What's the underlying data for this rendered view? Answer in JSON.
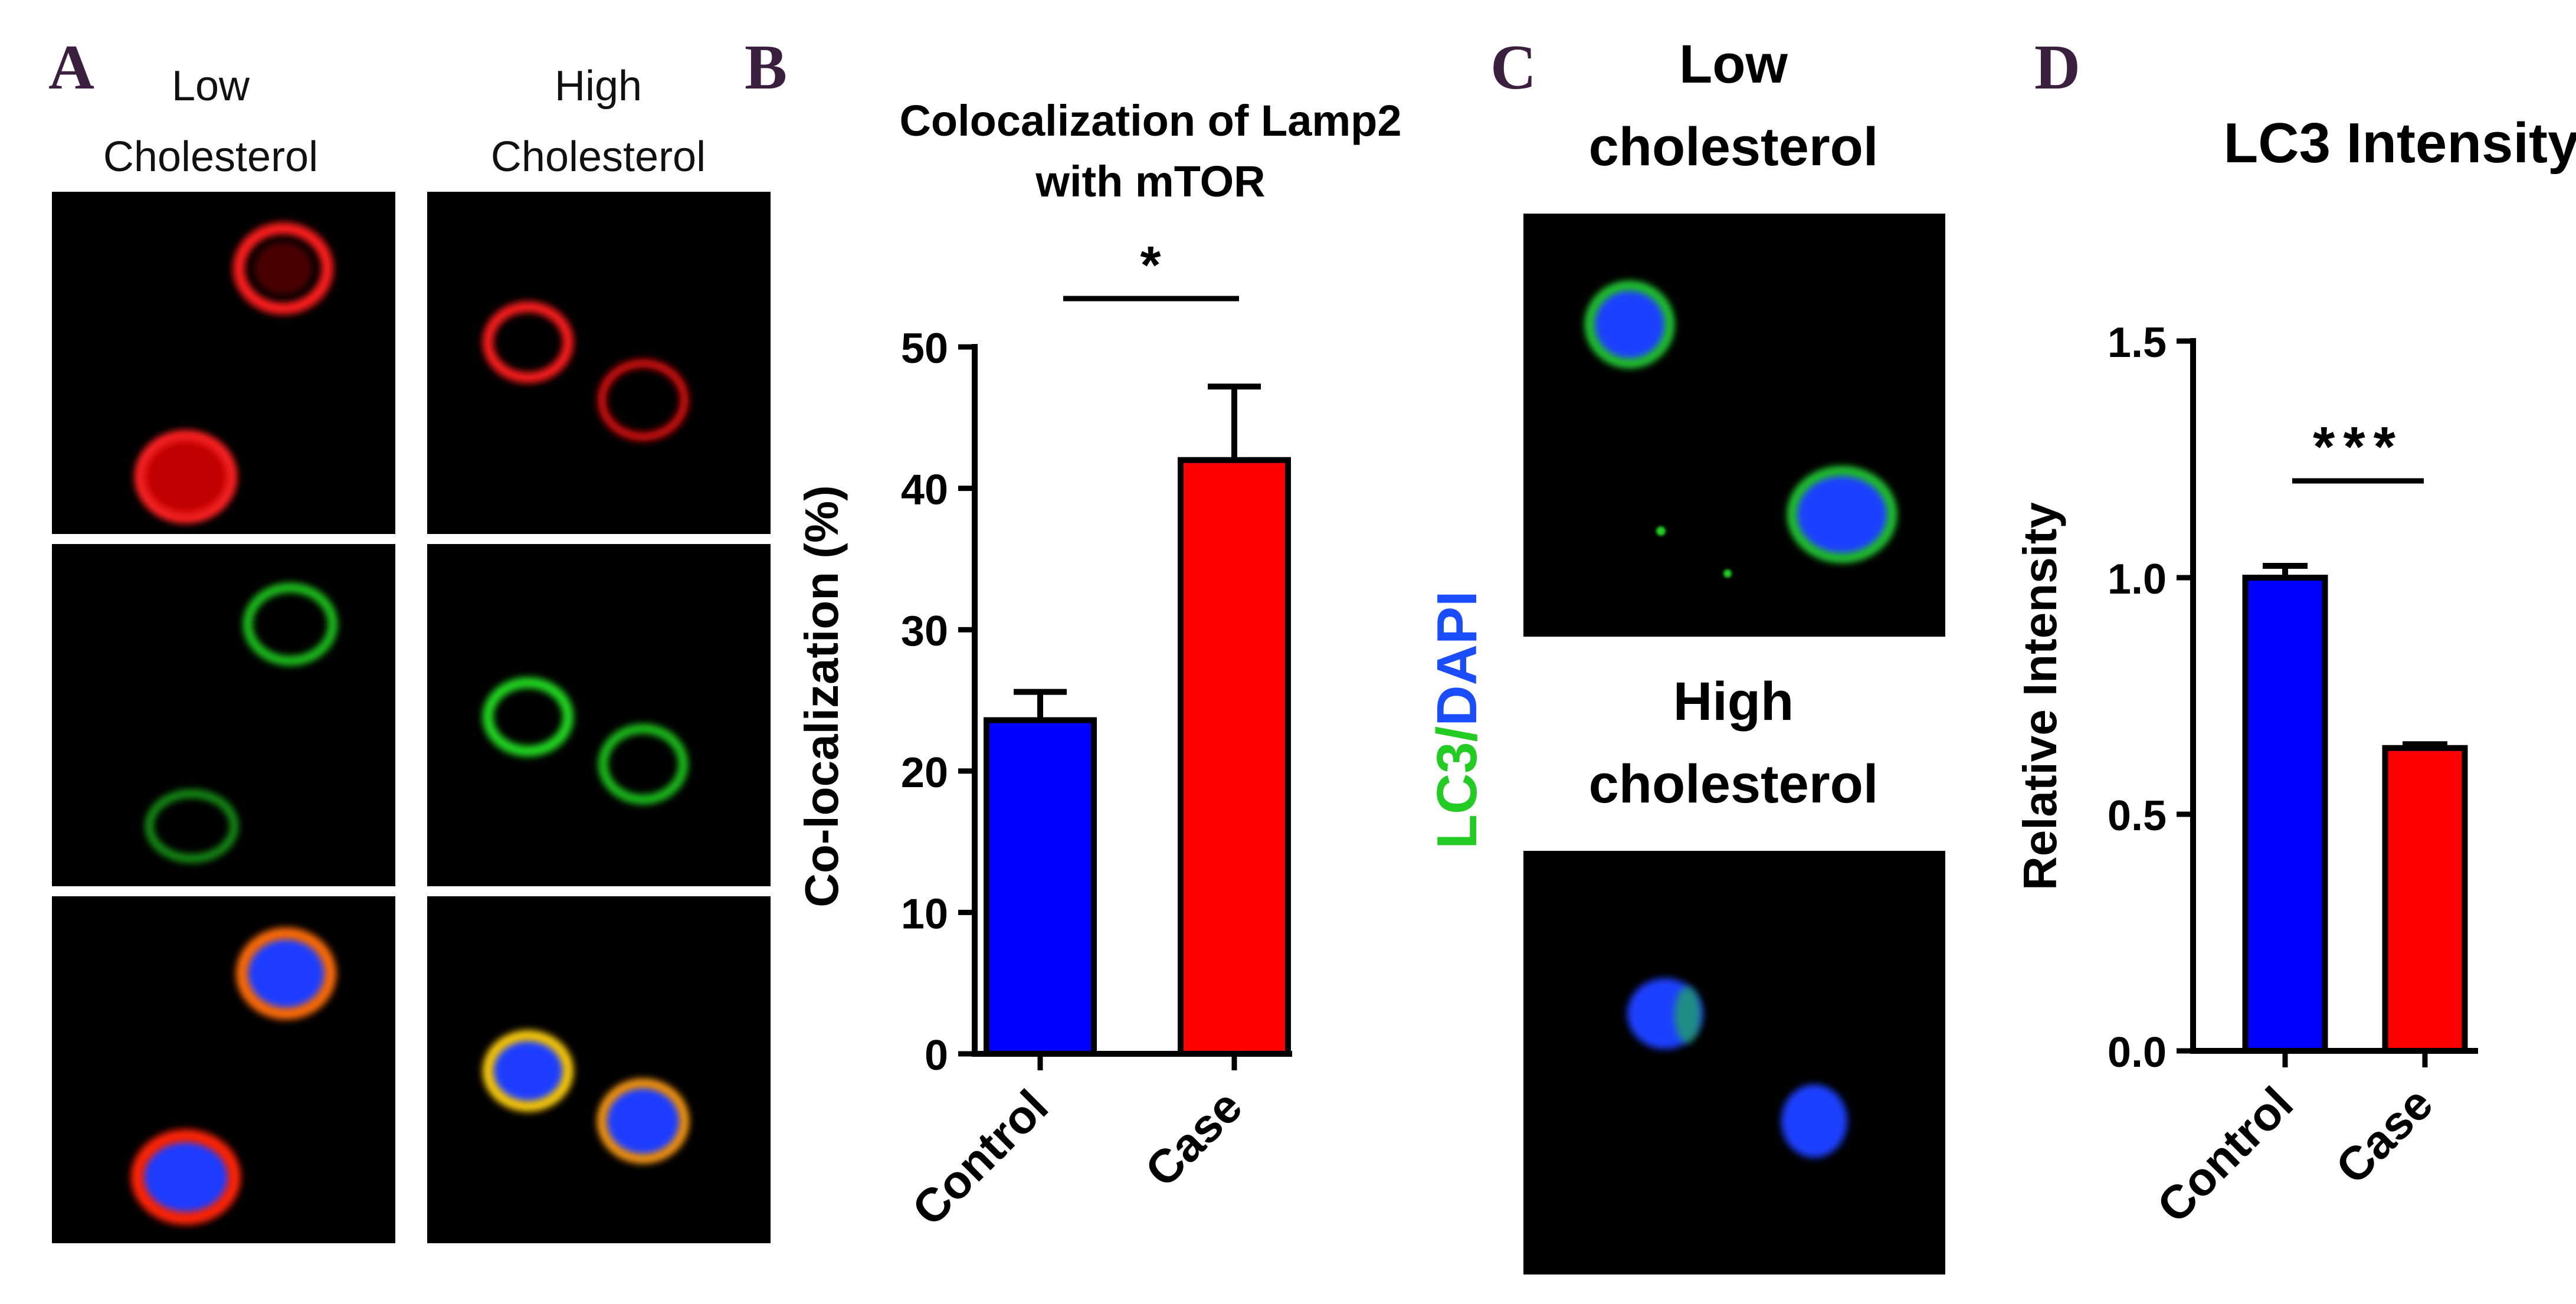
{
  "panels": {
    "A": {
      "letter": "A",
      "col1_label_l1": "Low",
      "col1_label_l2": "Cholesterol",
      "col2_label_l1": "High",
      "col2_label_l2": "Cholesterol"
    },
    "C": {
      "letter": "C",
      "top_label_l1": "Low",
      "top_label_l2": "cholesterol",
      "bottom_label_l1": "High",
      "bottom_label_l2": "cholesterol",
      "stain_label_lc3": "LC3",
      "stain_label_sep": "/",
      "stain_label_dapi": "DAPI"
    },
    "B": {
      "letter": "B"
    },
    "D": {
      "letter": "D"
    }
  },
  "colors": {
    "control": "#0000ff",
    "case": "#ff0000",
    "lamp2_red": "#ff1a1a",
    "mtor_green": "#22dd22",
    "lc3_green": "#22cc22",
    "dapi_blue": "#1a4dff",
    "text_dark": "#3a1f3f"
  },
  "chart_data": [
    {
      "type": "bar",
      "title_l1": "Colocalization of Lamp2",
      "title_l2": "with mTOR",
      "categories": [
        "Control",
        "Case"
      ],
      "values": [
        23.6,
        42.0
      ],
      "errors": [
        2.0,
        5.2
      ],
      "ylabel": "Co-localization (%)",
      "ylim": [
        0,
        50
      ],
      "yticks": [
        "0",
        "10",
        "20",
        "30",
        "40",
        "50"
      ],
      "significance": "*"
    },
    {
      "type": "bar",
      "title": "LC3 Intensity",
      "categories": [
        "Control",
        "Case"
      ],
      "values": [
        1.0,
        0.64
      ],
      "errors": [
        0.025,
        0.008
      ],
      "ylabel": "Relative Intensity",
      "ylim": [
        0,
        1.5
      ],
      "yticks": [
        "0.0",
        "0.5",
        "1.0",
        "1.5"
      ],
      "significance": "***"
    }
  ]
}
